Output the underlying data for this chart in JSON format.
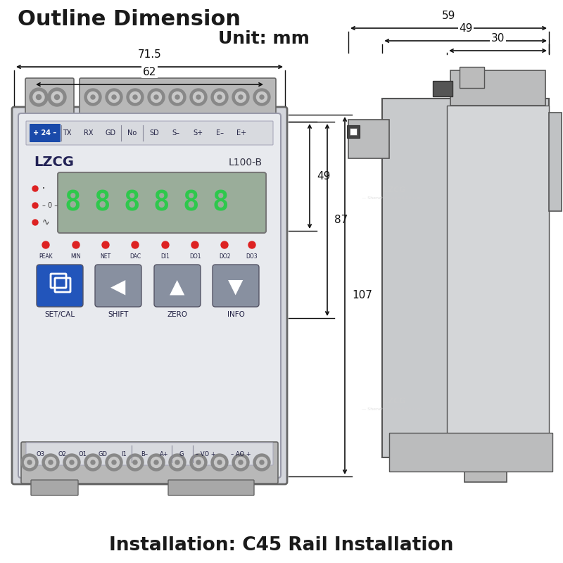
{
  "title": "Outline Dimension",
  "unit_text": "Unit: mm",
  "bottom_text": "Installation: C45 Rail Installation",
  "bg_color": "#ffffff",
  "title_color": "#1a1a1a",
  "device_body_color": "#d4d6dc",
  "device_border": "#666666",
  "panel_face": "#e8eaee",
  "panel_face2": "#dcdee4",
  "display_bg": "#aabfaa",
  "display_green": "#22cc44",
  "btn_blue": "#2255bb",
  "btn_gray": "#8890a0",
  "terminal_color": "#aaaaaa",
  "label_blue_bg": "#1a4aaa",
  "label_blue_fg": "#ffffff",
  "dim_line_color": "#111111",
  "wm_color": "#cccccc",
  "dim_71_5": "71.5",
  "dim_62": "62",
  "dim_49": "49",
  "dim_87": "87",
  "dim_107": "107",
  "dim_59": "59",
  "dim_49r": "49",
  "dim_30": "30"
}
